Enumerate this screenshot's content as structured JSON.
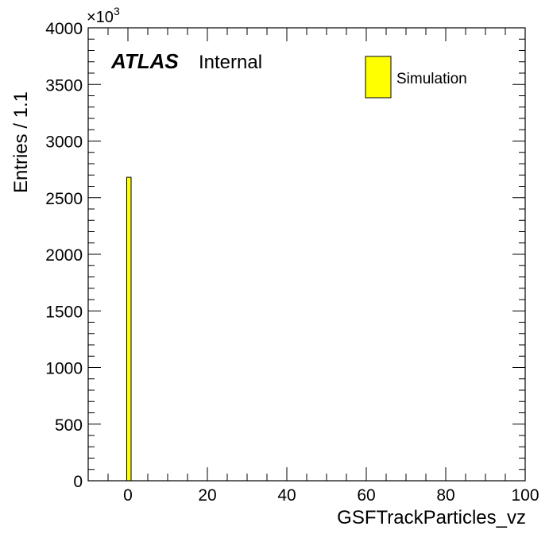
{
  "chart_data": {
    "type": "bar",
    "title": "",
    "xlabel": "GSFTrackParticles_vz",
    "ylabel": "Entries / 1.1",
    "y_multiplier": "×10",
    "y_multiplier_exp": "3",
    "xlim": [
      -10,
      100
    ],
    "ylim": [
      0,
      4000
    ],
    "x_ticks": [
      0,
      20,
      40,
      60,
      80,
      100
    ],
    "y_ticks": [
      0,
      500,
      1000,
      1500,
      2000,
      2500,
      3000,
      3500,
      4000
    ],
    "bin_width": 1.1,
    "bins": [
      {
        "x_low": -0.3,
        "x_high": 0.8,
        "value": 2680
      }
    ],
    "fill_color": "#ffff00",
    "edge_color": "#000000",
    "grid": false,
    "legend": {
      "position": "top-right",
      "entries": [
        {
          "label": "Simulation",
          "color": "#ffff00"
        }
      ]
    },
    "annotation": {
      "experiment": "ATLAS",
      "status": "Internal"
    }
  }
}
